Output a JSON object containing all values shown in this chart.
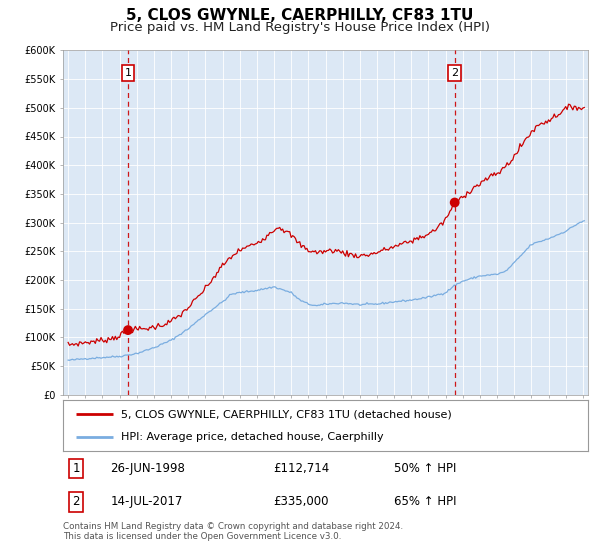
{
  "title": "5, CLOS GWYNLE, CAERPHILLY, CF83 1TU",
  "subtitle": "Price paid vs. HM Land Registry's House Price Index (HPI)",
  "ylim": [
    0,
    600000
  ],
  "xlim_start": 1994.7,
  "xlim_end": 2025.3,
  "yticks": [
    0,
    50000,
    100000,
    150000,
    200000,
    250000,
    300000,
    350000,
    400000,
    450000,
    500000,
    550000,
    600000
  ],
  "ytick_labels": [
    "£0",
    "£50K",
    "£100K",
    "£150K",
    "£200K",
    "£250K",
    "£300K",
    "£350K",
    "£400K",
    "£450K",
    "£500K",
    "£550K",
    "£600K"
  ],
  "xtick_years": [
    1995,
    1996,
    1997,
    1998,
    1999,
    2000,
    2001,
    2002,
    2003,
    2004,
    2005,
    2006,
    2007,
    2008,
    2009,
    2010,
    2011,
    2012,
    2013,
    2014,
    2015,
    2016,
    2017,
    2018,
    2019,
    2020,
    2021,
    2022,
    2023,
    2024,
    2025
  ],
  "property_color": "#cc0000",
  "hpi_color": "#7aade0",
  "vline_color": "#cc0000",
  "point1_x": 1998.49,
  "point1_y": 112714,
  "point2_x": 2017.53,
  "point2_y": 335000,
  "annotation1_label": "1",
  "annotation2_label": "2",
  "legend_label_property": "5, CLOS GWYNLE, CAERPHILLY, CF83 1TU (detached house)",
  "legend_label_hpi": "HPI: Average price, detached house, Caerphilly",
  "table_row1": [
    "1",
    "26-JUN-1998",
    "£112,714",
    "50% ↑ HPI"
  ],
  "table_row2": [
    "2",
    "14-JUL-2017",
    "£335,000",
    "65% ↑ HPI"
  ],
  "footer": "Contains HM Land Registry data © Crown copyright and database right 2024.\nThis data is licensed under the Open Government Licence v3.0.",
  "background_color": "#ffffff",
  "plot_bg_color": "#dce8f5",
  "grid_color": "#ffffff",
  "title_fontsize": 11,
  "subtitle_fontsize": 9.5
}
